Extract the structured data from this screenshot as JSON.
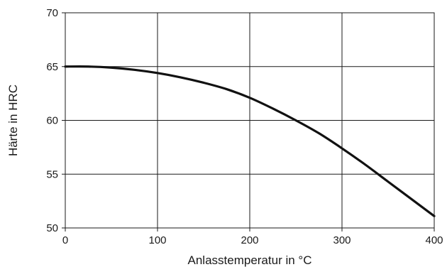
{
  "chart_data": {
    "type": "line",
    "title": "",
    "xlabel": "Anlasstemperatur in °C",
    "ylabel": "Härte in HRC",
    "xlim": [
      0,
      400
    ],
    "ylim": [
      50,
      70
    ],
    "xticks": [
      0,
      100,
      200,
      300,
      400
    ],
    "yticks": [
      50,
      55,
      60,
      65,
      70
    ],
    "x_tick_labels": [
      "0",
      "100",
      "200",
      "300",
      "400"
    ],
    "y_tick_labels": [
      "50",
      "55",
      "60",
      "65",
      "70"
    ],
    "grid": true,
    "legend": "none",
    "colors": {
      "line": "#111111",
      "grid": "#1a1a1a",
      "axis": "#1a1a1a"
    },
    "series": [
      {
        "x": [
          0,
          25,
          50,
          75,
          100,
          125,
          150,
          175,
          200,
          225,
          250,
          275,
          300,
          325,
          350,
          375,
          400
        ],
        "y": [
          65.0,
          65.0,
          64.9,
          64.7,
          64.4,
          64.0,
          63.5,
          62.9,
          62.1,
          61.1,
          60.0,
          58.8,
          57.4,
          55.9,
          54.3,
          52.7,
          51.1
        ]
      }
    ]
  }
}
